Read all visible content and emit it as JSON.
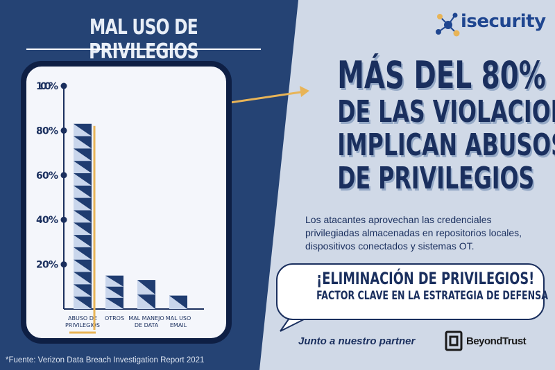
{
  "left_title": "MAL USO DE PRIVILEGIOS",
  "footnote": "*Fuente: Verizon Data Breach Investigation Report 2021",
  "logo": {
    "name": "isecurity",
    "icon": "network-nodes-icon"
  },
  "headline": [
    "MÁS DEL 80%",
    "DE LAS VIOLACIONES",
    "IMPLICAN ABUSOS",
    "DE PRIVILEGIOS"
  ],
  "body_text": "Los atacantes aprovechan las credenciales privilegiadas almacenadas en repositorios locales, dispositivos conectados y sistemas OT.",
  "callout": {
    "line1": "¡ELIMINACIÓN DE PRIVILEGIOS!",
    "line2": "FACTOR CLAVE EN LA ESTRATEGIA DE DEFENSA"
  },
  "partner": {
    "text": "Junto a nuestro partner",
    "brand": "BeyondTrust",
    "icon": "beyondtrust-logo-icon"
  },
  "colors": {
    "navy": "#1a2f5e",
    "left_panel": "#254374",
    "right_panel": "#d0d9e7",
    "accent_gold": "#e8b457",
    "bar_dark": "#1f3c70",
    "bar_light": "#c9d6ec"
  },
  "chart_data": {
    "type": "bar",
    "title": "MAL USO DE PRIVILEGIOS",
    "categories": [
      [
        "ABUSO DE",
        "PRIVILEGIOS"
      ],
      [
        "OTROS"
      ],
      [
        "MAL MANEJO",
        "DE DATA"
      ],
      [
        "MAL USO",
        "EMAIL"
      ]
    ],
    "values": [
      83,
      15,
      13,
      6
    ],
    "ylim": [
      0,
      100
    ],
    "yticks": [
      20,
      40,
      60,
      80,
      100
    ],
    "ytick_labels": [
      "20%",
      "40%",
      "60%",
      "80%",
      "100%"
    ],
    "grid": false,
    "highlight_index": 0
  }
}
